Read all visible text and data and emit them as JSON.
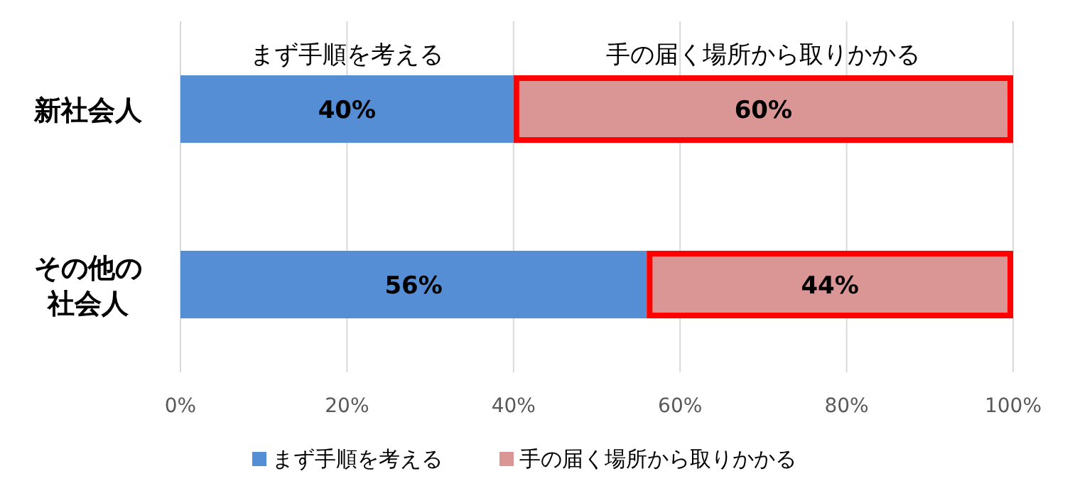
{
  "chart_data": {
    "type": "bar",
    "orientation": "horizontal",
    "stacked": true,
    "categories": [
      "新社会人",
      "その他の社会人"
    ],
    "series": [
      {
        "name": "まず手順を考える",
        "color": "#558ed5",
        "values": [
          40,
          56
        ],
        "value_labels": [
          "40%",
          "56%"
        ]
      },
      {
        "name": "手の届く場所から取りかかる",
        "color": "#d99694",
        "values": [
          60,
          44
        ],
        "value_labels": [
          "60%",
          "44%"
        ]
      }
    ],
    "xlim": [
      0,
      100
    ],
    "xticks": [
      {
        "value": 0,
        "label": "0%"
      },
      {
        "value": 20,
        "label": "20%"
      },
      {
        "value": 40,
        "label": "40%"
      },
      {
        "value": 60,
        "label": "60%"
      },
      {
        "value": 80,
        "label": "80%"
      },
      {
        "value": 100,
        "label": "100%"
      }
    ],
    "grid": "x",
    "legend": "bottom",
    "annotations": [
      "まず手順を考える",
      "手の届く場所から取りかかる"
    ]
  }
}
